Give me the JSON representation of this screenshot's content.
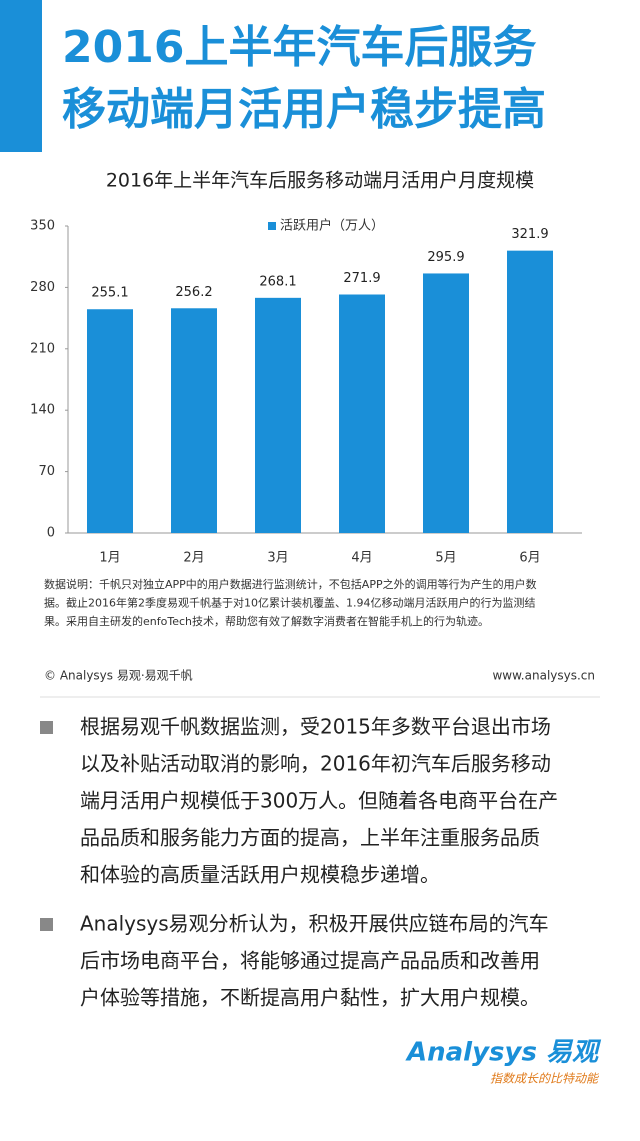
{
  "header": {
    "title_lines": [
      "2016上半年汽车后服务",
      "移动端月活用户稳步提高"
    ]
  },
  "chart_data": {
    "type": "bar",
    "title": "2016年上半年汽车后服务移动端月活用户月度规模",
    "categories": [
      "1月",
      "2月",
      "3月",
      "4月",
      "5月",
      "6月"
    ],
    "series": [
      {
        "name": "活跃用户（万人）",
        "color": "#1a8fd8",
        "values": [
          255.1,
          256.2,
          268.1,
          271.9,
          295.9,
          321.9
        ]
      }
    ],
    "ylim": [
      0,
      350
    ],
    "yticks": [
      0,
      70,
      140,
      210,
      280,
      350
    ],
    "grid": false,
    "legend": "top"
  },
  "note_lines": [
    "数据说明：千帆只对独立APP中的用户数据进行监测统计，不包括APP之外的调用等行为产生的用户数",
    "据。截止2016年第2季度易观千帆基于对10亿累计装机覆盖、1.94亿移动端月活跃用户的行为监测结",
    "果。采用自主研发的enfoTech技术，帮助您有效了解数字消费者在智能手机上的行为轨迹。"
  ],
  "source": "© Analysys 易观·易观千帆",
  "website": "www.analysys.cn",
  "bullets": [
    {
      "lines": [
        "根据易观千帆数据监测，受2015年多数平台退出市场",
        "以及补贴活动取消的影响，2016年初汽车后服务移动",
        "端月活用户规模低于300万人。但随着各电商平台在产",
        "品品质和服务能力方面的提高，上半年注重服务品质",
        "和体验的高质量活跃用户规模稳步递增。"
      ]
    },
    {
      "lines": [
        "Analysys易观分析认为，积极开展供应链布局的汽车",
        "后市场电商平台，将能够通过提高产品品质和改善用",
        "户体验等措施，不断提高用户黏性，扩大用户规模。"
      ]
    }
  ],
  "logo": {
    "name": "Analysys 易观",
    "slogan": "指数成长的比特动能"
  }
}
